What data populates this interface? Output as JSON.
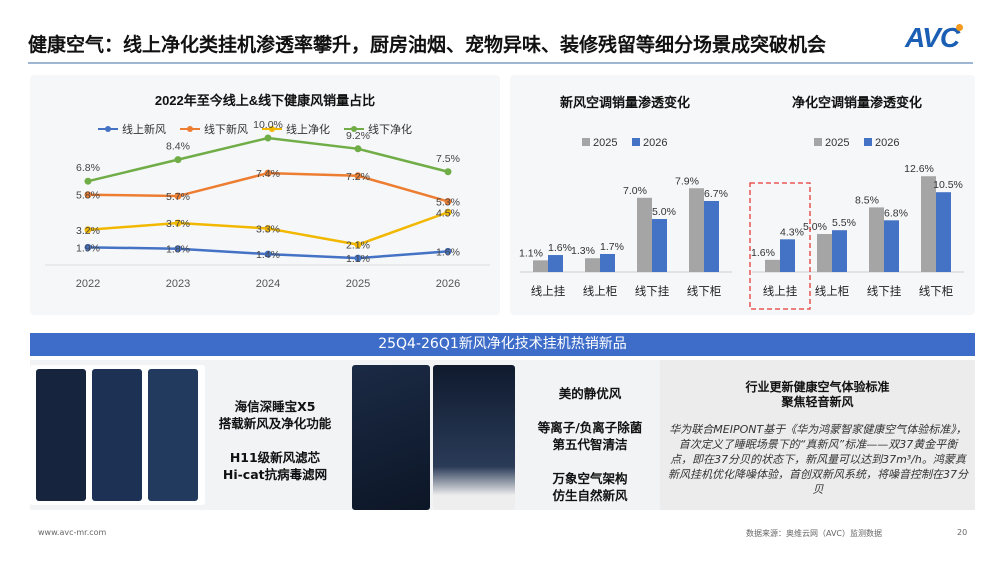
{
  "header": {
    "title": "健康空气：线上净化类挂机渗透率攀升，厨房油烟、宠物异味、装修残留等细分场景成突破机会",
    "logo": "AVC"
  },
  "colors": {
    "accent": "#3d6cc9",
    "blue": "#4472c4",
    "orange": "#ed7d31",
    "yellow": "#f2b800",
    "green": "#70ad47",
    "gray": "#a5a5a5",
    "bar2026": "#4472c4",
    "highlight": "#e53935"
  },
  "chart_data": [
    {
      "type": "line",
      "title": "2022年至今线上&线下健康风销量占比",
      "legend": "top",
      "categories": [
        "2022",
        "2023",
        "2024",
        "2025",
        "2026"
      ],
      "series": [
        {
          "name": "线上新风",
          "color": "#4472c4",
          "values": [
            1.9,
            1.8,
            1.4,
            1.1,
            1.6
          ],
          "labels": [
            "1.9%",
            "1.8%",
            "1.4%",
            "1.1%",
            "1.6%"
          ]
        },
        {
          "name": "线下新风",
          "color": "#ed7d31",
          "values": [
            5.8,
            5.7,
            7.4,
            7.2,
            5.3
          ],
          "labels": [
            "5.8%",
            "5.7%",
            "7.4%",
            "7.2%",
            "5.3%"
          ]
        },
        {
          "name": "线上净化",
          "color": "#f2b800",
          "values": [
            3.2,
            3.7,
            3.3,
            2.1,
            4.5
          ],
          "labels": [
            "3.2%",
            "3.7%",
            "3.3%",
            "2.1%",
            "4.5%"
          ]
        },
        {
          "name": "线下净化",
          "color": "#70ad47",
          "values": [
            6.8,
            8.4,
            10.0,
            9.2,
            7.5
          ],
          "labels": [
            "6.8%",
            "8.4%",
            "10.0%",
            "9.2%",
            "7.5%"
          ]
        }
      ]
    },
    {
      "type": "bar",
      "title": "新风空调销量渗透变化",
      "legend": "top",
      "categories": [
        "线上挂",
        "线上柜",
        "线下挂",
        "线下柜"
      ],
      "series": [
        {
          "name": "2025",
          "color": "#a5a5a5",
          "values": [
            1.1,
            1.3,
            7.0,
            7.9
          ],
          "labels": [
            "1.1%",
            "1.3%",
            "7.0%",
            "7.9%"
          ]
        },
        {
          "name": "2026",
          "color": "#4472c4",
          "values": [
            1.6,
            1.7,
            5.0,
            6.7
          ],
          "labels": [
            "1.6%",
            "1.7%",
            "5.0%",
            "6.7%"
          ]
        }
      ]
    },
    {
      "type": "bar",
      "title": "净化空调销量渗透变化",
      "legend": "top",
      "highlight": "线上挂",
      "categories": [
        "线上挂",
        "线上柜",
        "线下挂",
        "线下柜"
      ],
      "series": [
        {
          "name": "2025",
          "color": "#a5a5a5",
          "values": [
            1.6,
            5.0,
            8.5,
            12.6
          ],
          "labels": [
            "1.6%",
            "5.0%",
            "8.5%",
            "12.6%"
          ]
        },
        {
          "name": "2026",
          "color": "#4472c4",
          "values": [
            4.3,
            5.5,
            6.8,
            10.5
          ],
          "labels": [
            "4.3%",
            "5.5%",
            "6.8%",
            "10.5%"
          ]
        }
      ]
    }
  ],
  "banner": "25Q4-26Q1新风净化技术挂机热销新品",
  "products": {
    "hisense": [
      "海信深睡宝X5",
      "搭载新风及净化功能",
      "",
      "H11级新风滤芯",
      "Hi-cat抗病毒滤网"
    ],
    "midea": [
      "美的静优风",
      "",
      "等离子/负离子除菌",
      "第五代智清洁",
      "",
      "万象空气架构",
      "仿生自然新风"
    ],
    "huawei_title": [
      "行业更新健康空气体验标准",
      "聚焦轻音新风"
    ],
    "huawei_body": "华为联合MEIPONT基于《华为鸿蒙智家健康空气体验标准》，首次定义了睡眠场景下的“真新风”标准——双37黄金平衡点，即在37分贝的状态下，新风量可以达到37m³/h。鸿蒙真新风挂机优化降噪体验，首创双新风系统，将噪音控制在37分贝"
  },
  "footer": {
    "url": "www.avc-mr.com",
    "source": "数据来源：奥维云网（AVC）监测数据",
    "page": "20"
  }
}
